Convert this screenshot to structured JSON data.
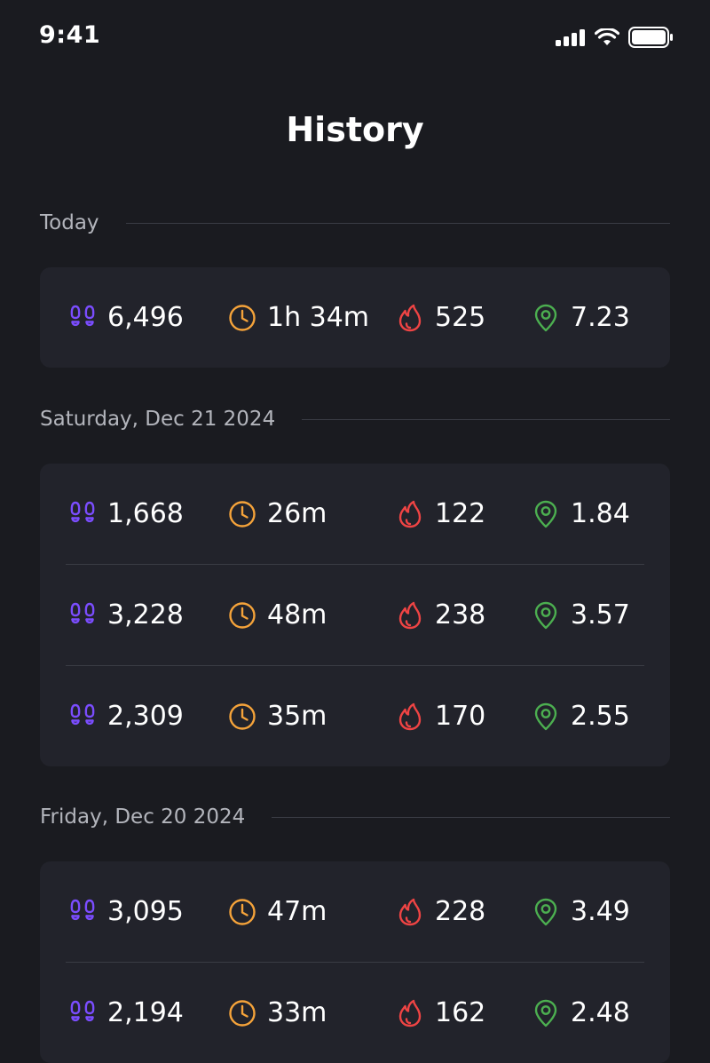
{
  "status_bar": {
    "time": "9:41"
  },
  "page": {
    "title": "History"
  },
  "icons": {
    "steps": "footsteps-icon",
    "time": "clock-icon",
    "calories": "flame-icon",
    "distance": "location-pin-icon"
  },
  "colors": {
    "steps": "#7b4dff",
    "time": "#f5a33a",
    "calories": "#ef4444",
    "distance": "#4caf50",
    "background": "#1a1b20",
    "card": "#22232b"
  },
  "sections": [
    {
      "label": "Today",
      "entries": [
        {
          "steps": "6,496",
          "time": "1h 34m",
          "calories": "525",
          "distance": "7.23"
        }
      ]
    },
    {
      "label": "Saturday, Dec 21 2024",
      "entries": [
        {
          "steps": "1,668",
          "time": "26m",
          "calories": "122",
          "distance": "1.84"
        },
        {
          "steps": "3,228",
          "time": "48m",
          "calories": "238",
          "distance": "3.57"
        },
        {
          "steps": "2,309",
          "time": "35m",
          "calories": "170",
          "distance": "2.55"
        }
      ]
    },
    {
      "label": "Friday, Dec 20 2024",
      "entries": [
        {
          "steps": "3,095",
          "time": "47m",
          "calories": "228",
          "distance": "3.49"
        },
        {
          "steps": "2,194",
          "time": "33m",
          "calories": "162",
          "distance": "2.48"
        }
      ]
    }
  ]
}
